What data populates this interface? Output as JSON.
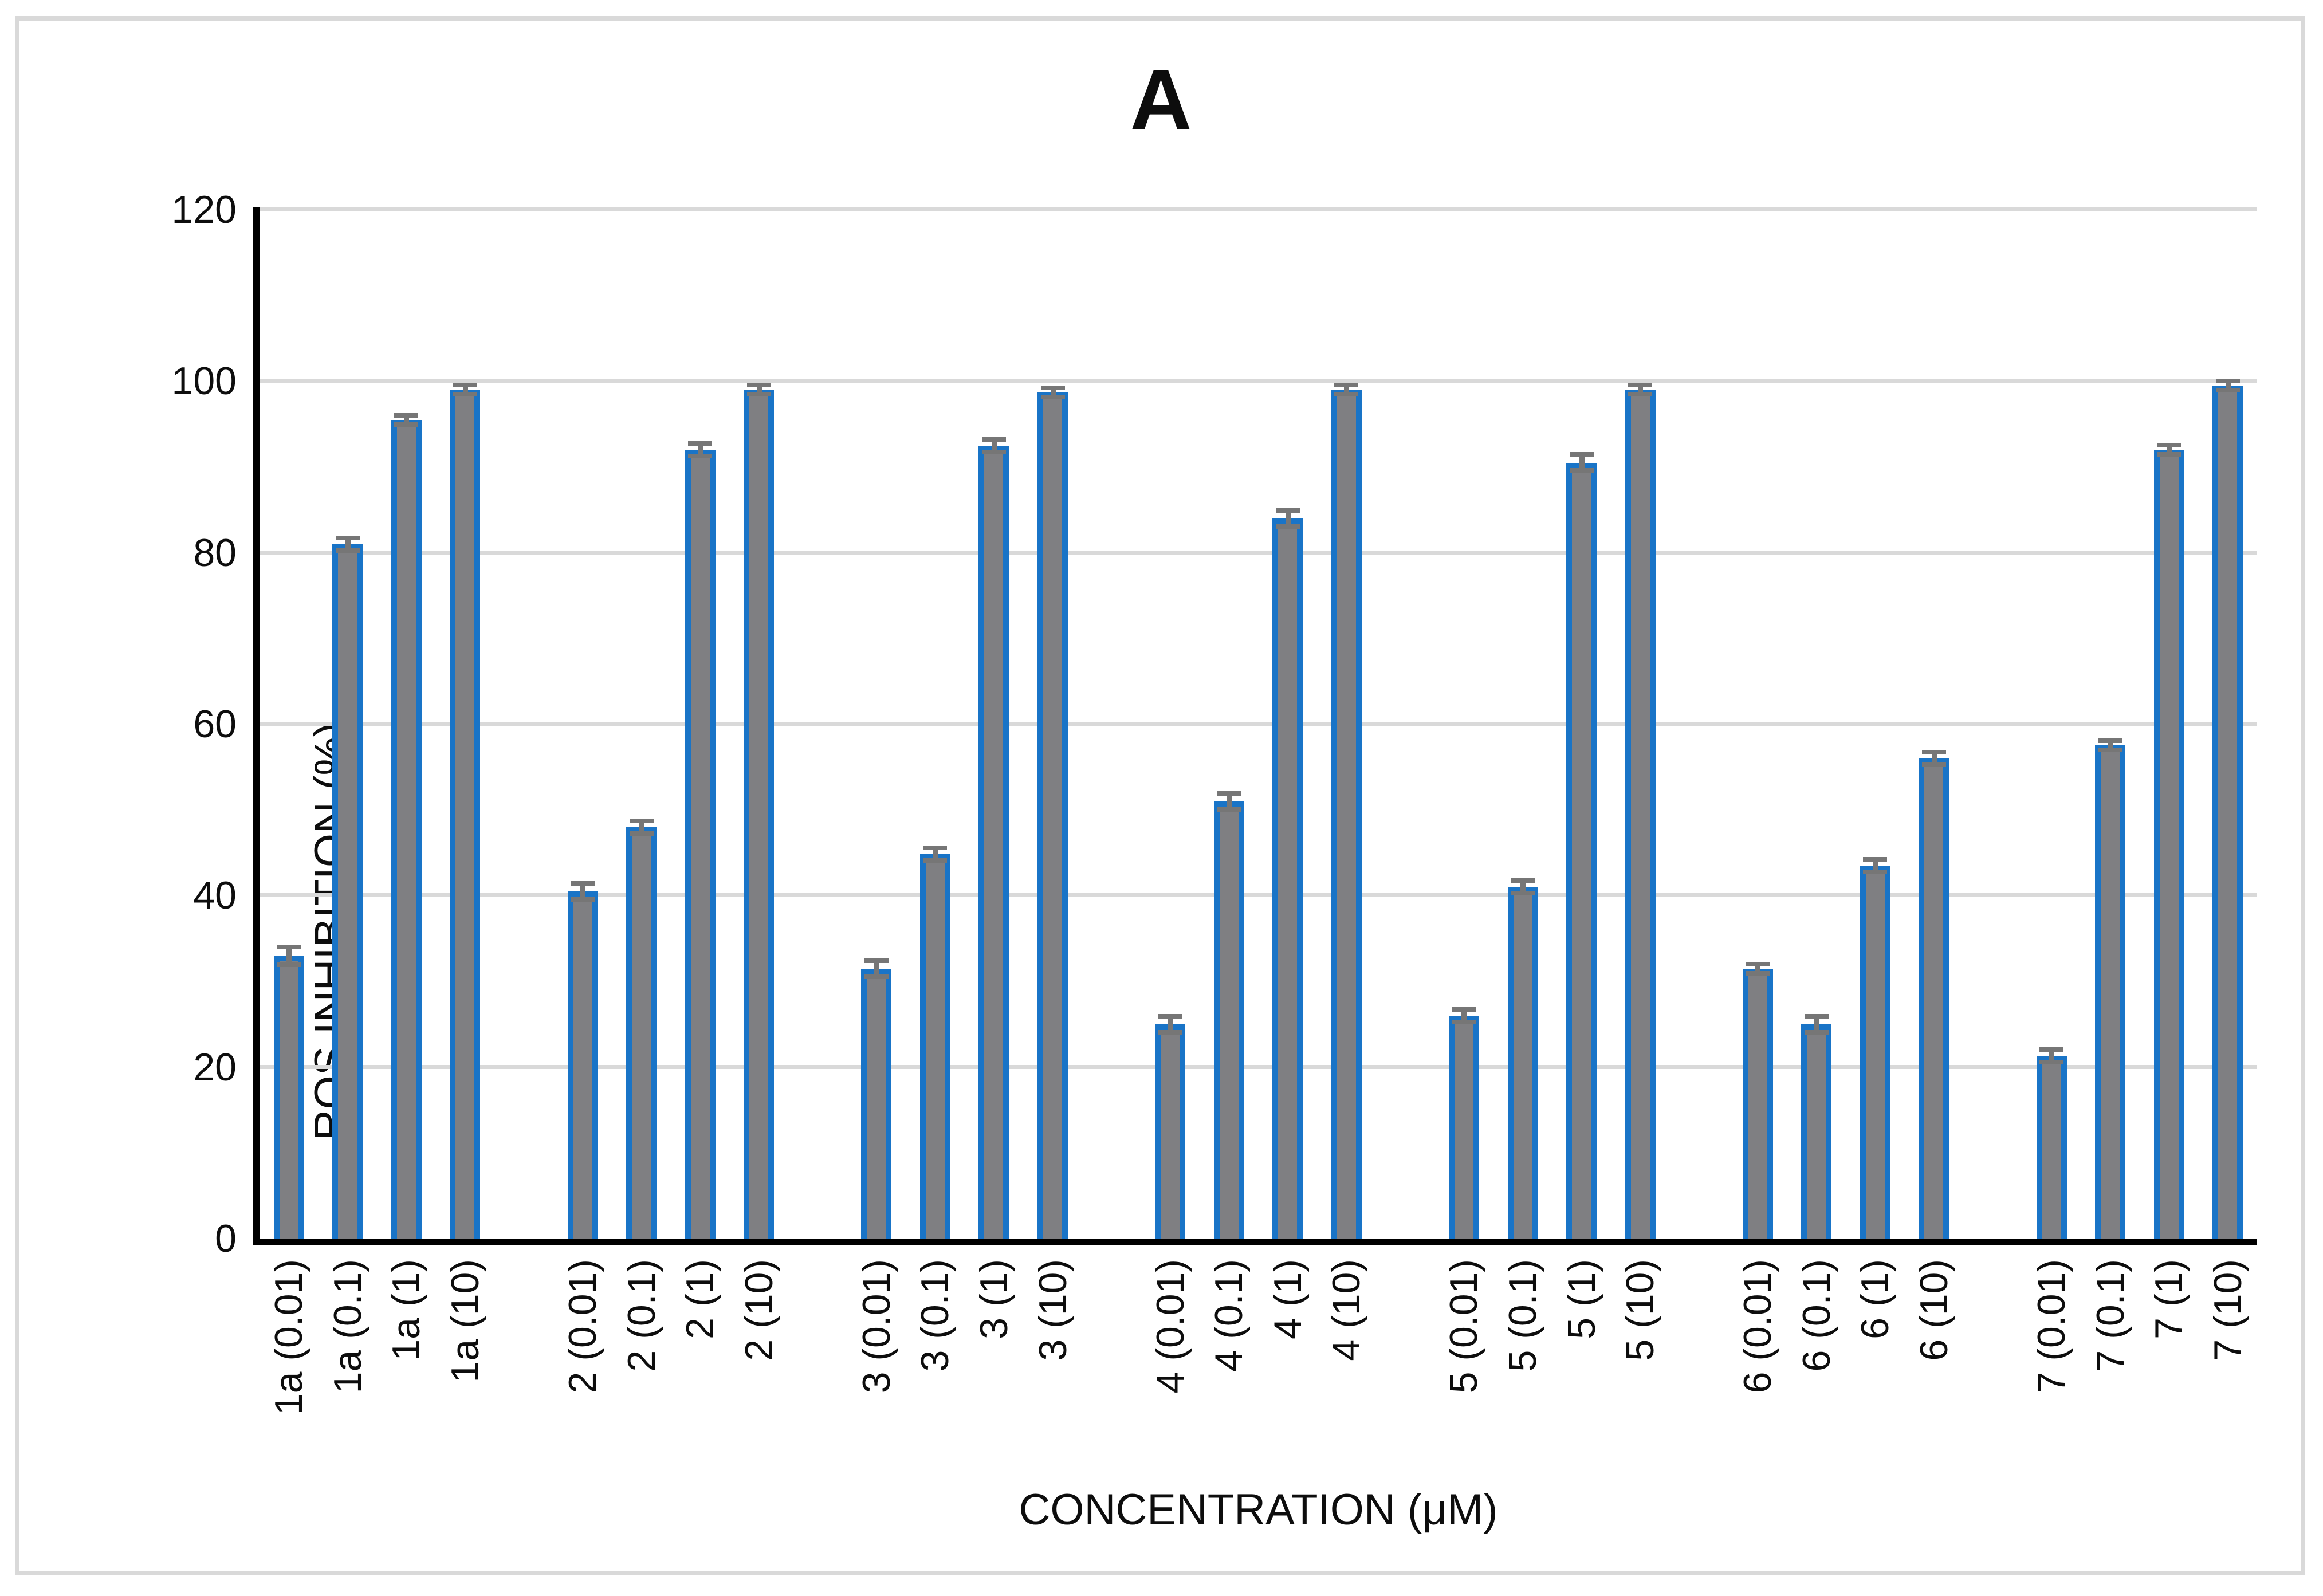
{
  "figure": {
    "panel_label": "A"
  },
  "chart_data": {
    "type": "bar",
    "title": "A",
    "xlabel": "CONCENTRATION (μM)",
    "ylabel": "ROS INHIBITION (%)",
    "ylim": [
      0,
      120
    ],
    "y_ticks": [
      0,
      20,
      40,
      60,
      80,
      100,
      120
    ],
    "grid": true,
    "legend": "none",
    "colors": {
      "bar_fill": "#7f7f82",
      "bar_border": "#1974c7",
      "error_bar": "#767676",
      "gridline": "#d9d9d9",
      "axis_line": "#000000",
      "figure_border": "#d9d9d9"
    },
    "groups": [
      {
        "name": "1a",
        "categories": [
          "1a (0.01)",
          "1a (0.1)",
          "1a (1)",
          "1a (10)"
        ],
        "values": [
          33,
          81,
          95.5,
          99
        ],
        "errors": [
          1.3,
          1.0,
          0.8,
          0.8
        ]
      },
      {
        "name": "2",
        "categories": [
          "2 (0.01)",
          "2 (0.1)",
          "2 (1)",
          "2 (10)"
        ],
        "values": [
          40.5,
          48,
          92,
          99
        ],
        "errors": [
          1.2,
          1.0,
          1.0,
          0.8
        ]
      },
      {
        "name": "3",
        "categories": [
          "3 (0.01)",
          "3 (0.1)",
          "3 (1)",
          "3 (10)"
        ],
        "values": [
          31.5,
          44.8,
          92.5,
          98.7
        ],
        "errors": [
          1.2,
          1.0,
          1.0,
          0.8
        ]
      },
      {
        "name": "4",
        "categories": [
          "4 (0.01)",
          "4 (0.1)",
          "4 (1)",
          "4 (10)"
        ],
        "values": [
          25,
          51,
          84,
          99
        ],
        "errors": [
          1.2,
          1.2,
          1.2,
          0.8
        ]
      },
      {
        "name": "5",
        "categories": [
          "5 (0.01)",
          "5 (0.1)",
          "5 (1)",
          "5 (10)"
        ],
        "values": [
          26,
          41,
          90.5,
          99
        ],
        "errors": [
          1.0,
          1.0,
          1.2,
          0.8
        ]
      },
      {
        "name": "6",
        "categories": [
          "6 (0.01)",
          "6 (0.1)",
          "6 (1)",
          "6 (10)"
        ],
        "values": [
          31.5,
          25,
          43.5,
          56
        ],
        "errors": [
          0.8,
          1.2,
          1.0,
          1.0
        ]
      },
      {
        "name": "7",
        "categories": [
          "7 (0.01)",
          "7 (0.1)",
          "7 (1)",
          "7 (10)"
        ],
        "values": [
          21.3,
          57.5,
          92,
          99.5
        ],
        "errors": [
          1.0,
          0.8,
          0.8,
          0.8
        ]
      }
    ]
  }
}
